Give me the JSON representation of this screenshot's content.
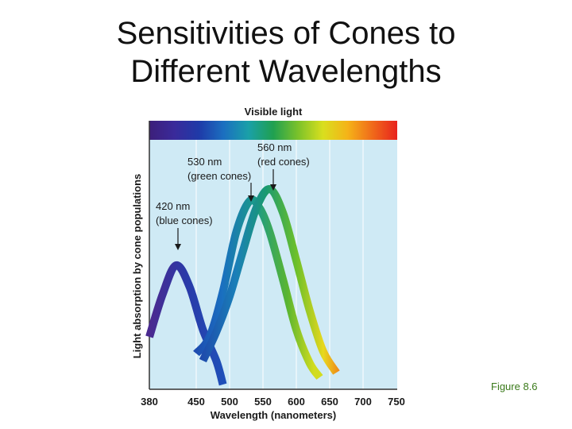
{
  "slide": {
    "title_line1": "Sensitivities of Cones to",
    "title_line2": "Different Wavelengths",
    "figure_label": "Figure 8.6"
  },
  "chart_data": {
    "type": "line",
    "title": "Visible light",
    "xlabel": "Wavelength (nanometers)",
    "ylabel": "Light absorption by cone populations",
    "x_ticks": [
      380,
      450,
      500,
      550,
      600,
      650,
      700,
      750
    ],
    "xlim": [
      380,
      750
    ],
    "grid": true,
    "series": [
      {
        "name": "blue cones",
        "peak_nm": 420,
        "x": [
          380,
          400,
          420,
          440,
          460,
          480,
          490
        ],
        "y": [
          0.12,
          0.3,
          0.42,
          0.33,
          0.15,
          0.02,
          -0.08
        ]
      },
      {
        "name": "green cones",
        "peak_nm": 530,
        "x": [
          450,
          470,
          490,
          510,
          530,
          545,
          560,
          580,
          600,
          620,
          635
        ],
        "y": [
          0.05,
          0.12,
          0.31,
          0.56,
          0.69,
          0.66,
          0.56,
          0.36,
          0.15,
          0.01,
          -0.05
        ]
      },
      {
        "name": "red cones",
        "peak_nm": 560,
        "x": [
          460,
          480,
          500,
          520,
          540,
          560,
          580,
          600,
          620,
          640,
          660
        ],
        "y": [
          0.02,
          0.14,
          0.29,
          0.48,
          0.66,
          0.74,
          0.64,
          0.44,
          0.23,
          0.06,
          -0.03
        ]
      }
    ],
    "annotations": [
      {
        "label_line1": "420 nm",
        "label_line2": "(blue cones)",
        "series": "blue cones"
      },
      {
        "label_line1": "530 nm",
        "label_line2": "(green cones)",
        "series": "green cones"
      },
      {
        "label_line1": "560 nm",
        "label_line2": "(red cones)",
        "series": "red cones"
      }
    ],
    "colors": {
      "plot_background": "#cfeaf5",
      "gridline": "#ffffff",
      "annotation_text": "#1a1a1a",
      "axis": "#333333"
    },
    "spectrum_colors": [
      "#3d1f7a",
      "#3a2a9a",
      "#1f3aa8",
      "#1b6fc0",
      "#1aa0a8",
      "#20a050",
      "#7bc22a",
      "#d9df1e",
      "#f5b318",
      "#f06a1a",
      "#e8231e"
    ]
  }
}
